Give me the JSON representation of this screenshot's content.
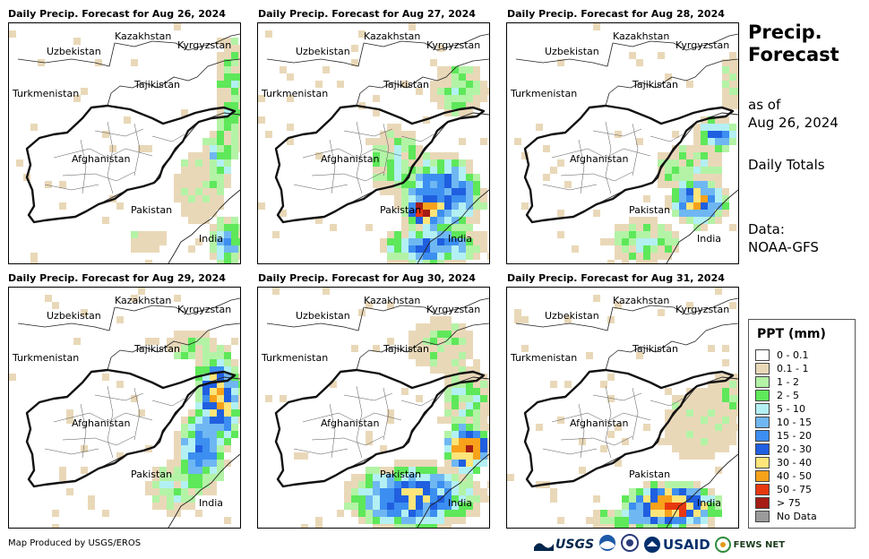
{
  "panels": [
    {
      "title": "Daily Precip. Forecast for Aug 26, 2024"
    },
    {
      "title": "Daily Precip. Forecast for Aug 27, 2024"
    },
    {
      "title": "Daily Precip. Forecast for Aug 28, 2024"
    },
    {
      "title": "Daily Precip. Forecast for Aug 29, 2024"
    },
    {
      "title": "Daily Precip. Forecast for Aug 30, 2024"
    },
    {
      "title": "Daily Precip. Forecast for Aug 31, 2024"
    }
  ],
  "map_labels": {
    "kazakhstan": "Kazakhstan",
    "kyrgyzstan": "Kyrgyzstan",
    "uzbekistan": "Uzbekistan",
    "tajikistan": "Tajikistan",
    "turkmenistan": "Turkmenistan",
    "afghanistan": "Afghanistan",
    "pakistan": "Pakistan",
    "india": "India"
  },
  "side": {
    "title_line1": "Precip.",
    "title_line2": "Forecast",
    "asof_line1": "as of",
    "asof_line2": "Aug 26, 2024",
    "totals": "Daily Totals",
    "data_line1": "Data:",
    "data_line2": "NOAA-GFS"
  },
  "legend": {
    "title": "PPT (mm)",
    "items": [
      {
        "label": "0 - 0.1",
        "color": "#ffffff"
      },
      {
        "label": "0.1 - 1",
        "color": "#e9d8b8"
      },
      {
        "label": "1 - 2",
        "color": "#b3f3a6"
      },
      {
        "label": "2 - 5",
        "color": "#5ee85a"
      },
      {
        "label": "5 - 10",
        "color": "#b3f0f3"
      },
      {
        "label": "10 - 15",
        "color": "#6fb7f2"
      },
      {
        "label": "15 - 20",
        "color": "#3c8ef0"
      },
      {
        "label": "20 - 30",
        "color": "#1f5fe0"
      },
      {
        "label": "30 - 40",
        "color": "#fde57a"
      },
      {
        "label": "40 - 50",
        "color": "#f8a21b"
      },
      {
        "label": "50 - 75",
        "color": "#e8380f"
      },
      {
        "label": "> 75",
        "color": "#a51d14"
      },
      {
        "label": "No Data",
        "color": "#9a9a9a"
      }
    ]
  },
  "footer": {
    "credit": "Map Produced by USGS/EROS"
  },
  "logos": {
    "usgs": "USGS",
    "usaid": "USAID",
    "fews": "FEWS NET"
  }
}
